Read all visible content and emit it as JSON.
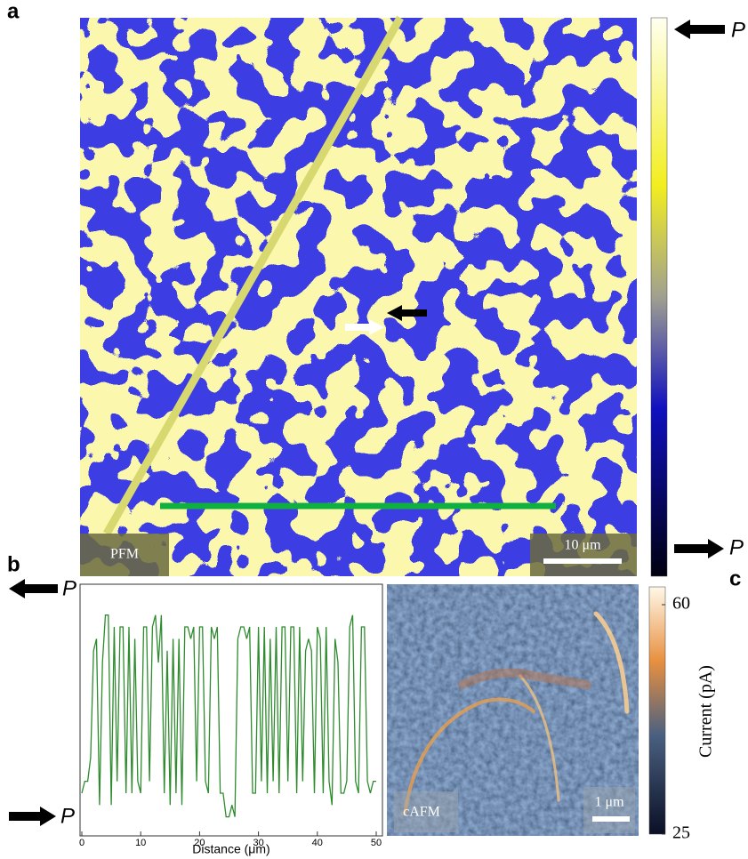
{
  "panel_labels": [
    "a",
    "b",
    "c"
  ],
  "pfm": {
    "label": "PFM",
    "scale_bar": "10 μm",
    "polarization_top": "P",
    "polarization_bottom": "P"
  },
  "chart_data": {
    "type": "line",
    "xlabel": "Distance (μm)",
    "color": "#2e8b2e",
    "polarization_top": "P",
    "polarization_bottom": "P",
    "xlim": [
      0,
      50
    ],
    "xticks": [
      0,
      10,
      20,
      30,
      40,
      50
    ],
    "ylim": [
      0,
      1
    ],
    "x": [
      0,
      0.5,
      1,
      1.5,
      2,
      2.5,
      3,
      3.5,
      4,
      4.5,
      5,
      5.5,
      6,
      6.5,
      7,
      7.5,
      8,
      8.5,
      9,
      9.5,
      10,
      10.5,
      11,
      11.5,
      12,
      12.5,
      13,
      13.5,
      14,
      14.5,
      15,
      15.5,
      16,
      16.5,
      17,
      17.5,
      18,
      18.5,
      19,
      19.5,
      20,
      20.5,
      21,
      21.5,
      22,
      22.5,
      23,
      23.5,
      24,
      24.5,
      25,
      25.5,
      26,
      26.5,
      27,
      27.5,
      28,
      28.5,
      29,
      29.5,
      30,
      30.5,
      31,
      31.5,
      32,
      32.5,
      33,
      33.5,
      34,
      34.5,
      35,
      35.5,
      36,
      36.5,
      37,
      37.5,
      38,
      38.5,
      39,
      39.5,
      40,
      40.5,
      41,
      41.5,
      42,
      42.5,
      43,
      43.5,
      44,
      44.5,
      45,
      45.5,
      46,
      46.5,
      47,
      47.5,
      48,
      48.5,
      49,
      49.5,
      50
    ],
    "values": [
      0.15,
      0.2,
      0.2,
      0.3,
      0.75,
      0.8,
      0.1,
      0.7,
      0.9,
      0.9,
      0.1,
      0.85,
      0.2,
      0.85,
      0.85,
      0.15,
      0.85,
      0.15,
      0.8,
      0.2,
      0.15,
      0.85,
      0.85,
      0.2,
      0.85,
      0.9,
      0.7,
      0.9,
      0.15,
      0.75,
      0.1,
      0.8,
      0.15,
      0.8,
      0.1,
      0.85,
      0.85,
      0.8,
      0.85,
      0.2,
      0.85,
      0.85,
      0.2,
      0.15,
      0.85,
      0.8,
      0.85,
      0.15,
      0.15,
      0.05,
      0.05,
      0.1,
      0.05,
      0.8,
      0.85,
      0.85,
      0.8,
      0.85,
      0.15,
      0.15,
      0.85,
      0.2,
      0.85,
      0.15,
      0.8,
      0.2,
      0.85,
      0.15,
      0.85,
      0.85,
      0.2,
      0.85,
      0.85,
      0.15,
      0.85,
      0.2,
      0.75,
      0.8,
      0.75,
      0.15,
      0.85,
      0.8,
      0.15,
      0.85,
      0.2,
      0.1,
      0.8,
      0.7,
      0.15,
      0.15,
      0.2,
      0.85,
      0.9,
      0.2,
      0.15,
      0.85,
      0.85,
      0.2,
      0.15,
      0.2,
      0.2
    ]
  },
  "cafm": {
    "label": "cAFM",
    "scale_bar": "1 μm",
    "colorbar_label": "Current (pA)",
    "clim": [
      25,
      60
    ],
    "colorbar_ticks": [
      25,
      60
    ]
  }
}
